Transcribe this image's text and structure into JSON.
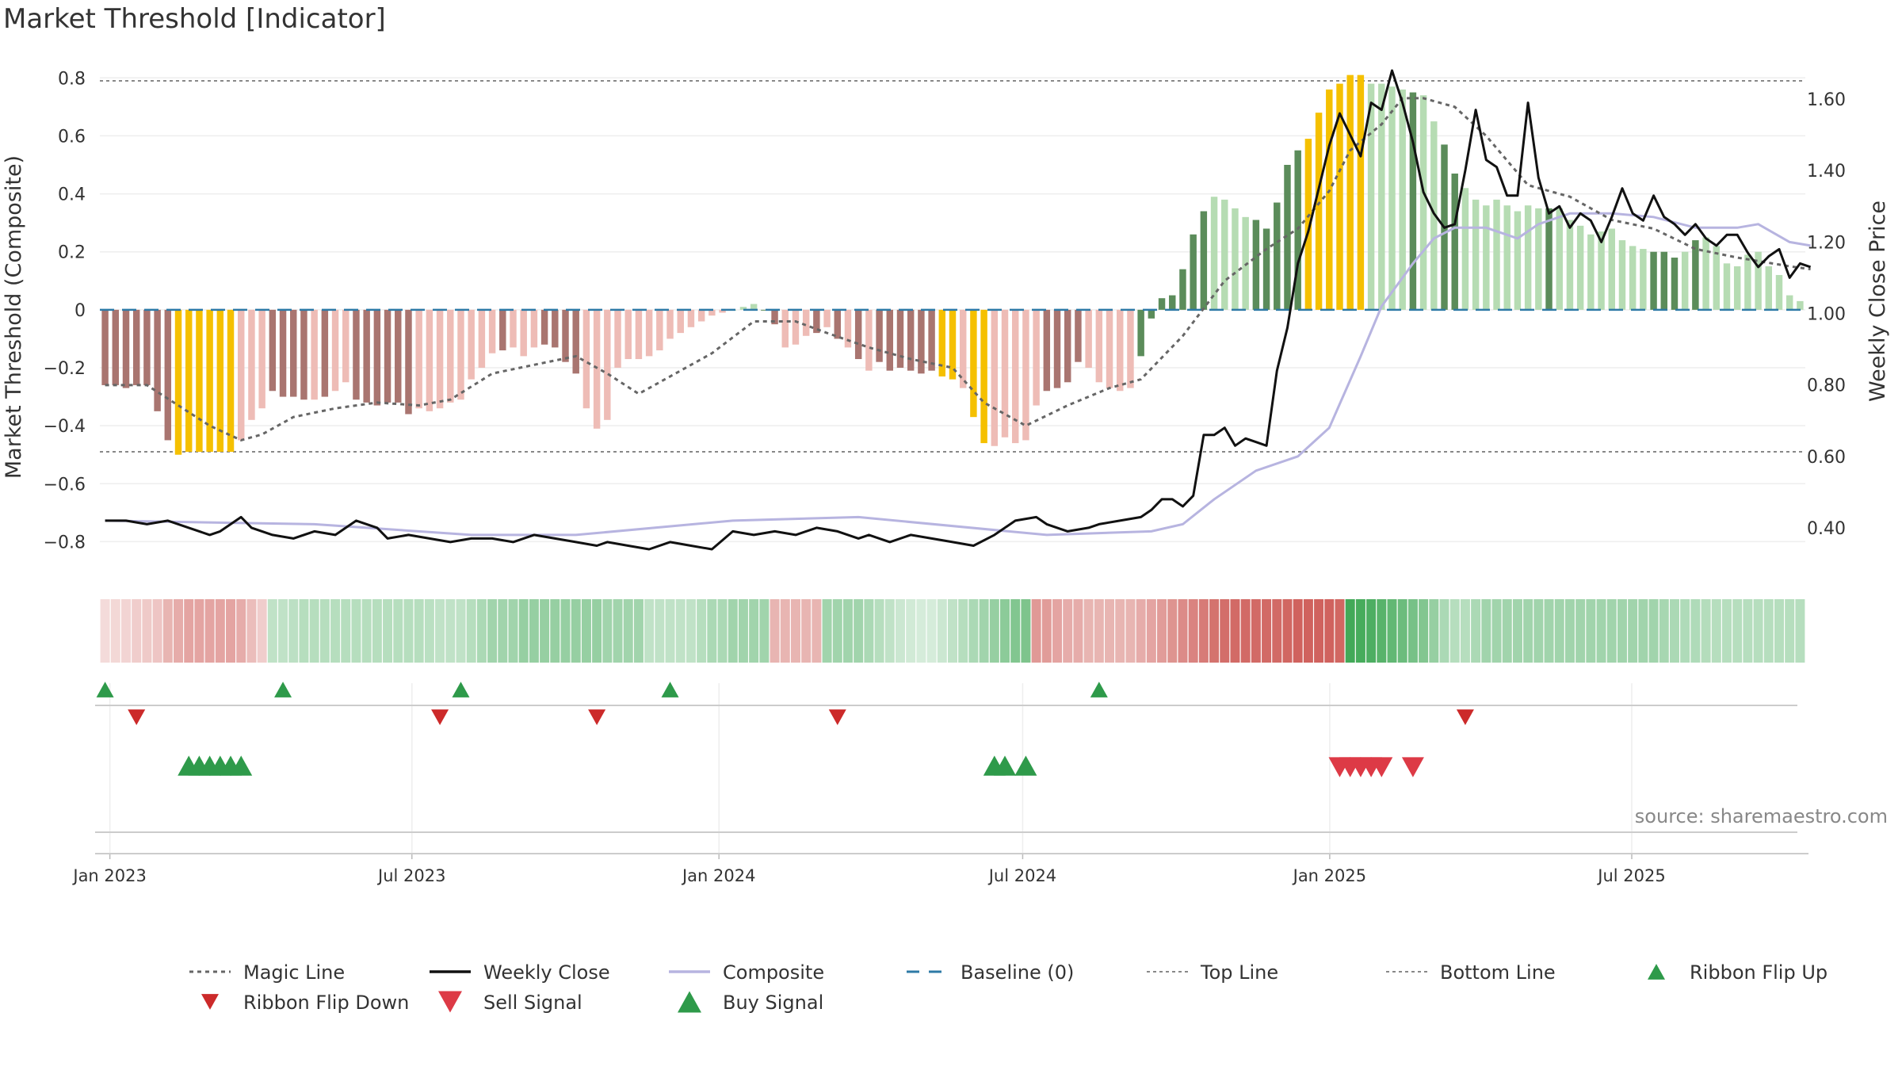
{
  "title": "Market Threshold [Indicator]",
  "source": "source: sharemaestro.com",
  "colors": {
    "bull_strong": "#5b8c5a",
    "bull_weak": "#b6dcb3",
    "bear_strong": "#a97570",
    "bear_weak": "#eebcb6",
    "extreme": "#f5c000",
    "magic": "#666666",
    "weekly": "#111111",
    "composite": "#b7b4e0",
    "baseline": "#2e7aa6",
    "bound_lines": "#888888",
    "ribbon_up": "#2e9a4a",
    "ribbon_down": "#cc2a2a",
    "sell": "#dd3a46",
    "buy": "#2e9a4a"
  },
  "chart_data": {
    "type": "bar",
    "title": "Market Threshold [Indicator]",
    "ylabel": "Market Threshold (Composite)",
    "y2label": "Weekly Close Price",
    "ylim": [
      -0.9,
      0.85
    ],
    "y2lim": [
      0.28,
      1.7
    ],
    "yticks": [
      "0.8",
      "0.6",
      "0.4",
      "0.2",
      "0",
      "−0.2",
      "−0.4",
      "−0.6",
      "−0.8"
    ],
    "y2ticks": [
      "1.60",
      "1.40",
      "1.20",
      "1.00",
      "0.80",
      "0.60",
      "0.40"
    ],
    "xticks": [
      "Jan 2023",
      "Jul 2023",
      "Jan 2024",
      "Jul 2024",
      "Jan 2025",
      "Jul 2025"
    ],
    "x_start": "2022-12-26",
    "x_end": "2025-10-13",
    "top_line": 0.79,
    "bottom_line": -0.49,
    "grid": true,
    "legend_position": "bottom",
    "histogram": [
      -0.26,
      -0.26,
      -0.27,
      -0.26,
      -0.26,
      -0.35,
      -0.45,
      -0.5,
      -0.49,
      -0.49,
      -0.49,
      -0.49,
      -0.49,
      -0.45,
      -0.38,
      -0.34,
      -0.28,
      -0.3,
      -0.3,
      -0.31,
      -0.31,
      -0.3,
      -0.28,
      -0.25,
      -0.31,
      -0.32,
      -0.33,
      -0.32,
      -0.32,
      -0.36,
      -0.34,
      -0.35,
      -0.34,
      -0.32,
      -0.31,
      -0.24,
      -0.2,
      -0.15,
      -0.14,
      -0.13,
      -0.16,
      -0.13,
      -0.12,
      -0.13,
      -0.18,
      -0.22,
      -0.34,
      -0.41,
      -0.38,
      -0.2,
      -0.17,
      -0.17,
      -0.16,
      -0.14,
      -0.1,
      -0.08,
      -0.06,
      -0.04,
      -0.02,
      -0.01,
      0,
      0.01,
      0.02,
      0,
      -0.05,
      -0.13,
      -0.12,
      -0.09,
      -0.08,
      -0.06,
      -0.1,
      -0.13,
      -0.17,
      -0.21,
      -0.18,
      -0.21,
      -0.2,
      -0.21,
      -0.22,
      -0.21,
      -0.23,
      -0.24,
      -0.27,
      -0.37,
      -0.46,
      -0.47,
      -0.44,
      -0.46,
      -0.45,
      -0.33,
      -0.28,
      -0.27,
      -0.25,
      -0.18,
      -0.2,
      -0.25,
      -0.27,
      -0.28,
      -0.27,
      -0.16,
      -0.03,
      0.04,
      0.05,
      0.14,
      0.26,
      0.34,
      0.39,
      0.38,
      0.35,
      0.32,
      0.31,
      0.28,
      0.37,
      0.5,
      0.55,
      0.59,
      0.68,
      0.76,
      0.78,
      0.81,
      0.81,
      0.78,
      0.78,
      0.77,
      0.76,
      0.75,
      0.74,
      0.65,
      0.57,
      0.47,
      0.42,
      0.38,
      0.36,
      0.38,
      0.36,
      0.34,
      0.36,
      0.35,
      0.35,
      0.35,
      0.31,
      0.29,
      0.26,
      0.27,
      0.28,
      0.24,
      0.22,
      0.21,
      0.2,
      0.2,
      0.18,
      0.2,
      0.24,
      0.25,
      0.22,
      0.16,
      0.15,
      0.19,
      0.2,
      0.15,
      0.12,
      0.05,
      0.03
    ],
    "bar_classes": "bbbbbBBXXXXXXwwwBBBBwBwwBBBBBBwwwwwwwwBwwwBBBBwwwwwwwwwwwwwwwwwBBwwwBwBwBwBBBBBBXXwXXwwwwwBBBBwwwwwGGGGGGGwwwwGGGGGXXXXXXggggGggGGggggggggGgggggggggGGGgGgggg",
    "magic_line": [
      [
        0,
        -0.26
      ],
      [
        4,
        -0.26
      ],
      [
        7,
        -0.33
      ],
      [
        10,
        -0.4
      ],
      [
        13,
        -0.45
      ],
      [
        15,
        -0.43
      ],
      [
        18,
        -0.37
      ],
      [
        22,
        -0.34
      ],
      [
        26,
        -0.32
      ],
      [
        30,
        -0.33
      ],
      [
        33,
        -0.31
      ],
      [
        37,
        -0.22
      ],
      [
        41,
        -0.19
      ],
      [
        45,
        -0.16
      ],
      [
        48,
        -0.22
      ],
      [
        51,
        -0.29
      ],
      [
        55,
        -0.21
      ],
      [
        58,
        -0.15
      ],
      [
        62,
        -0.04
      ],
      [
        66,
        -0.04
      ],
      [
        69,
        -0.08
      ],
      [
        73,
        -0.13
      ],
      [
        77,
        -0.17
      ],
      [
        81,
        -0.2
      ],
      [
        84,
        -0.32
      ],
      [
        88,
        -0.4
      ],
      [
        92,
        -0.33
      ],
      [
        96,
        -0.27
      ],
      [
        99,
        -0.24
      ],
      [
        103,
        -0.09
      ],
      [
        107,
        0.1
      ],
      [
        111,
        0.21
      ],
      [
        114,
        0.28
      ],
      [
        117,
        0.41
      ],
      [
        119,
        0.55
      ],
      [
        122,
        0.64
      ],
      [
        124,
        0.73
      ],
      [
        126,
        0.73
      ],
      [
        129,
        0.7
      ],
      [
        132,
        0.6
      ],
      [
        136,
        0.43
      ],
      [
        140,
        0.39
      ],
      [
        144,
        0.31
      ],
      [
        148,
        0.28
      ],
      [
        152,
        0.21
      ],
      [
        156,
        0.18
      ],
      [
        161,
        0.15
      ],
      [
        163,
        0.14
      ]
    ],
    "composite_line": [
      [
        0,
        0.42
      ],
      [
        20,
        0.41
      ],
      [
        35,
        0.38
      ],
      [
        45,
        0.38
      ],
      [
        60,
        0.42
      ],
      [
        72,
        0.43
      ],
      [
        90,
        0.38
      ],
      [
        100,
        0.39
      ],
      [
        103,
        0.41
      ],
      [
        106,
        0.48
      ],
      [
        110,
        0.56
      ],
      [
        114,
        0.6
      ],
      [
        117,
        0.68
      ],
      [
        120,
        0.88
      ],
      [
        122,
        1.02
      ],
      [
        125,
        1.14
      ],
      [
        127,
        1.21
      ],
      [
        129,
        1.24
      ],
      [
        132,
        1.24
      ],
      [
        135,
        1.21
      ],
      [
        137,
        1.25
      ],
      [
        140,
        1.28
      ],
      [
        144,
        1.28
      ],
      [
        148,
        1.27
      ],
      [
        152,
        1.24
      ],
      [
        156,
        1.24
      ],
      [
        158,
        1.25
      ],
      [
        161,
        1.2
      ],
      [
        163,
        1.19
      ]
    ],
    "weekly_close": [
      [
        0,
        0.42
      ],
      [
        2,
        0.42
      ],
      [
        4,
        0.41
      ],
      [
        6,
        0.42
      ],
      [
        8,
        0.4
      ],
      [
        10,
        0.38
      ],
      [
        11,
        0.39
      ],
      [
        13,
        0.43
      ],
      [
        14,
        0.4
      ],
      [
        16,
        0.38
      ],
      [
        18,
        0.37
      ],
      [
        20,
        0.39
      ],
      [
        22,
        0.38
      ],
      [
        24,
        0.42
      ],
      [
        26,
        0.4
      ],
      [
        27,
        0.37
      ],
      [
        29,
        0.38
      ],
      [
        31,
        0.37
      ],
      [
        33,
        0.36
      ],
      [
        35,
        0.37
      ],
      [
        37,
        0.37
      ],
      [
        39,
        0.36
      ],
      [
        41,
        0.38
      ],
      [
        43,
        0.37
      ],
      [
        45,
        0.36
      ],
      [
        47,
        0.35
      ],
      [
        48,
        0.36
      ],
      [
        50,
        0.35
      ],
      [
        52,
        0.34
      ],
      [
        54,
        0.36
      ],
      [
        56,
        0.35
      ],
      [
        58,
        0.34
      ],
      [
        60,
        0.39
      ],
      [
        62,
        0.38
      ],
      [
        64,
        0.39
      ],
      [
        66,
        0.38
      ],
      [
        68,
        0.4
      ],
      [
        70,
        0.39
      ],
      [
        72,
        0.37
      ],
      [
        73,
        0.38
      ],
      [
        75,
        0.36
      ],
      [
        77,
        0.38
      ],
      [
        79,
        0.37
      ],
      [
        81,
        0.36
      ],
      [
        83,
        0.35
      ],
      [
        85,
        0.38
      ],
      [
        87,
        0.42
      ],
      [
        89,
        0.43
      ],
      [
        90,
        0.41
      ],
      [
        92,
        0.39
      ],
      [
        94,
        0.4
      ],
      [
        95,
        0.41
      ],
      [
        97,
        0.42
      ],
      [
        99,
        0.43
      ],
      [
        101,
        0.41
      ],
      [
        103,
        0.42
      ],
      [
        105,
        0.41
      ],
      [
        107,
        0.38
      ],
      [
        108,
        0.41
      ],
      [
        110,
        0.42
      ],
      [
        112,
        0.42
      ],
      [
        113,
        0.39
      ],
      [
        115,
        0.4
      ],
      [
        117,
        0.38
      ],
      [
        119,
        0.36
      ],
      [
        121,
        0.37
      ],
      [
        122,
        0.4
      ],
      [
        124,
        0.41
      ],
      [
        125,
        0.37
      ],
      [
        127,
        0.4
      ],
      [
        129,
        0.38
      ],
      [
        131,
        0.38
      ],
      [
        133,
        0.36
      ],
      [
        135,
        0.37
      ],
      [
        137,
        0.41
      ],
      [
        138,
        0.42
      ],
      [
        140,
        0.46
      ],
      [
        141,
        0.47
      ],
      [
        143,
        0.46
      ],
      [
        144,
        0.48
      ],
      [
        145,
        0.44
      ],
      [
        146,
        0.52
      ],
      [
        148,
        0.7
      ],
      [
        150,
        0.73
      ],
      [
        152,
        0.69
      ],
      [
        153,
        0.7
      ],
      [
        155,
        0.67
      ],
      [
        157,
        0.66
      ],
      [
        158,
        0.77
      ],
      [
        160,
        0.91
      ],
      [
        162,
        0.88
      ],
      [
        163,
        0.93
      ]
    ],
    "weekly_close_detail_2024_2025": [
      [
        99,
        0.45
      ],
      [
        100,
        0.45
      ],
      [
        101,
        0.48
      ],
      [
        102,
        0.48
      ],
      [
        103,
        0.46
      ],
      [
        104,
        0.49
      ],
      [
        105,
        0.66
      ],
      [
        106,
        0.66
      ],
      [
        107,
        0.68
      ],
      [
        108,
        0.63
      ],
      [
        109,
        0.65
      ],
      [
        110,
        0.64
      ],
      [
        111,
        0.63
      ],
      [
        112,
        0.84
      ],
      [
        113,
        0.96
      ],
      [
        114,
        1.14
      ],
      [
        115,
        1.23
      ],
      [
        116,
        1.35
      ],
      [
        117,
        1.47
      ],
      [
        118,
        1.56
      ],
      [
        119,
        1.5
      ],
      [
        120,
        1.44
      ],
      [
        121,
        1.59
      ],
      [
        122,
        1.57
      ],
      [
        123,
        1.68
      ],
      [
        124,
        1.59
      ],
      [
        125,
        1.48
      ],
      [
        126,
        1.34
      ],
      [
        127,
        1.28
      ],
      [
        128,
        1.24
      ],
      [
        129,
        1.25
      ],
      [
        130,
        1.4
      ],
      [
        131,
        1.57
      ],
      [
        132,
        1.43
      ],
      [
        133,
        1.41
      ],
      [
        134,
        1.33
      ],
      [
        135,
        1.33
      ],
      [
        136,
        1.59
      ],
      [
        137,
        1.38
      ],
      [
        138,
        1.28
      ],
      [
        139,
        1.3
      ],
      [
        140,
        1.24
      ],
      [
        141,
        1.28
      ],
      [
        142,
        1.26
      ],
      [
        143,
        1.2
      ],
      [
        144,
        1.27
      ],
      [
        145,
        1.35
      ],
      [
        146,
        1.28
      ],
      [
        147,
        1.26
      ],
      [
        148,
        1.33
      ],
      [
        149,
        1.27
      ],
      [
        150,
        1.25
      ],
      [
        151,
        1.22
      ],
      [
        152,
        1.25
      ],
      [
        153,
        1.21
      ],
      [
        154,
        1.19
      ],
      [
        155,
        1.22
      ],
      [
        156,
        1.22
      ],
      [
        157,
        1.17
      ],
      [
        158,
        1.13
      ],
      [
        159,
        1.16
      ],
      [
        160,
        1.18
      ],
      [
        161,
        1.1
      ],
      [
        162,
        1.14
      ],
      [
        163,
        1.13
      ]
    ],
    "ribbon": [
      0.22,
      0.24,
      0.26,
      0.3,
      0.32,
      0.35,
      0.45,
      0.5,
      0.55,
      0.55,
      0.55,
      0.55,
      0.55,
      0.5,
      0.4,
      0.3,
      0.3,
      0.3,
      0.32,
      0.35,
      0.35,
      0.35,
      0.35,
      0.35,
      0.35,
      0.35,
      0.35,
      0.35,
      0.35,
      0.35,
      0.35,
      0.33,
      0.3,
      0.3,
      0.3,
      0.35,
      0.4,
      0.45,
      0.45,
      0.45,
      0.5,
      0.5,
      0.5,
      0.5,
      0.5,
      0.5,
      0.5,
      0.5,
      0.45,
      0.45,
      0.45,
      0.45,
      0.3,
      0.3,
      0.3,
      0.3,
      0.3,
      0.35,
      0.4,
      0.4,
      0.45,
      0.45,
      0.45,
      0.45,
      0.45,
      0.45,
      0.45,
      0.45,
      0.45,
      0.45,
      0.45,
      0.45,
      0.45,
      0.4,
      0.35,
      0.3,
      0.25,
      0.22,
      0.2,
      0.2,
      0.25,
      0.3,
      0.35,
      0.4,
      0.45,
      0.5,
      0.55,
      0.6,
      0.62,
      0.62,
      0.6,
      0.55,
      0.5,
      0.5,
      0.45,
      0.45,
      0.45,
      0.45,
      0.45,
      0.5,
      0.55,
      0.6,
      0.65,
      0.7,
      0.75,
      0.8,
      0.85,
      0.88,
      0.9,
      0.9,
      0.9,
      0.9,
      0.9,
      0.92,
      0.95,
      0.95,
      0.95,
      0.95,
      0.92,
      0.9,
      0.88,
      0.85,
      0.8,
      0.75,
      0.7,
      0.65,
      0.6,
      0.5,
      0.4,
      0.35,
      0.35,
      0.4,
      0.45,
      0.45,
      0.45,
      0.45,
      0.45,
      0.45,
      0.45,
      0.45,
      0.45,
      0.45,
      0.45,
      0.45,
      0.45,
      0.45,
      0.45,
      0.45,
      0.45,
      0.42,
      0.4,
      0.38,
      0.38,
      0.36,
      0.35,
      0.35,
      0.35,
      0.35,
      0.35,
      0.35,
      0.35,
      0.35,
      0.35
    ],
    "ribbon_direction": "rrrrrrrrrrrrrrrrggggggggggggggggggggggggggggggggggggggggggggggggrrrrrggggggggggggggggggggrrrrrrrrrrrrrrrrrrrrrrrrrrrrrrggggggggggggggggggggggggggggggggggggggggggggggggggggrrrrrrrrrrrrrrrrrrrrrrrrrrrrrrrrrrrrrrrrr",
    "ribbon_flip_up": [
      0,
      17,
      34,
      54,
      95
    ],
    "ribbon_flip_down": [
      3,
      32,
      47,
      70,
      130
    ],
    "buy_signal": [
      8,
      9,
      10,
      11,
      12,
      13,
      85,
      86,
      88
    ],
    "sell_signal": [
      118,
      119,
      120,
      121,
      122,
      125
    ]
  },
  "legend": [
    {
      "label": "Magic Line",
      "kind": "dotted",
      "color": "#666666"
    },
    {
      "label": "Weekly Close",
      "kind": "solid",
      "color": "#111111"
    },
    {
      "label": "Composite",
      "kind": "solid-light",
      "color": "#b7b4e0"
    },
    {
      "label": "Baseline (0)",
      "kind": "dashed",
      "color": "#2e7aa6"
    },
    {
      "label": "Top Line",
      "kind": "dotted-light",
      "color": "#888888"
    },
    {
      "label": "Bottom Line",
      "kind": "dotted-light",
      "color": "#888888"
    },
    {
      "label": "Ribbon Flip Up",
      "kind": "tri-up",
      "color": "#2e9a4a"
    },
    {
      "label": "Ribbon Flip Down",
      "kind": "tri-down",
      "color": "#cc2a2a"
    },
    {
      "label": "Sell Signal",
      "kind": "tri-down-big",
      "color": "#dd3a46"
    },
    {
      "label": "Buy Signal",
      "kind": "tri-up-big",
      "color": "#2e9a4a"
    }
  ]
}
